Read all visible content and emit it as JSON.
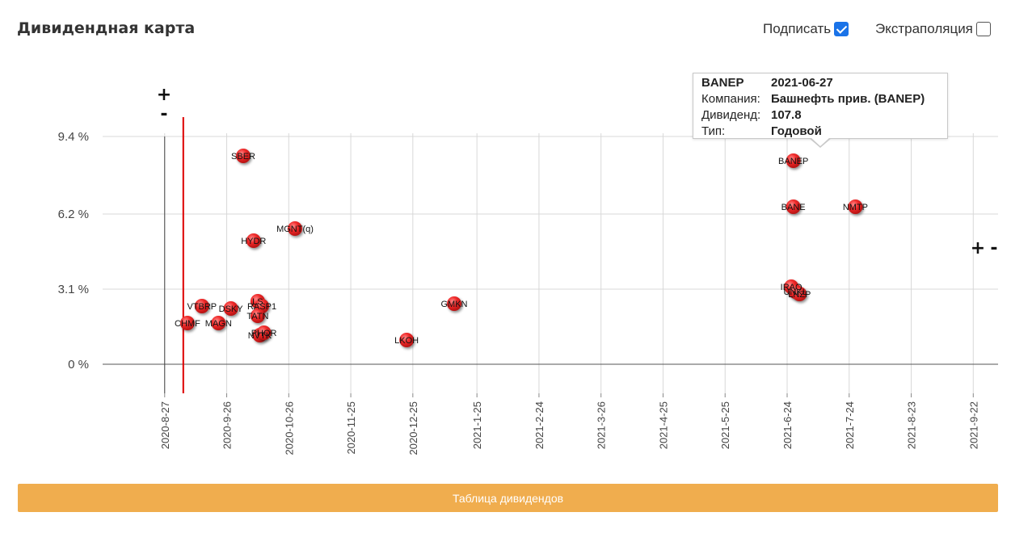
{
  "page": {
    "title": "Дивидендная карта",
    "controls": {
      "sign_label": "Подписать",
      "sign_checked": true,
      "extrapolation_label": "Экстраполяция",
      "extrapolation_checked": false
    },
    "zoom_plus": "+",
    "zoom_minus": "-",
    "table_button": "Таблица дивидендов"
  },
  "tooltip": {
    "ticker": "BANEP",
    "date": "2021-06-27",
    "company_label": "Компания:",
    "company": "Башнефть прив. (BANEP)",
    "dividend_label": "Дивиденд:",
    "dividend": "107.8",
    "type_label": "Тип:",
    "type": "Годовой"
  },
  "colors": {
    "marker": "#ee2222",
    "marker_shadow": "#8a1010",
    "today_line": "#dd0000",
    "button": "#f0ad4e",
    "grid": "#d8d8d8"
  },
  "chart_data": {
    "type": "scatter",
    "x_axis": {
      "type": "date",
      "ticks": [
        "2020-8-27",
        "2020-9-26",
        "2020-10-26",
        "2020-11-25",
        "2020-12-25",
        "2021-1-25",
        "2021-2-24",
        "2021-3-26",
        "2021-4-25",
        "2021-5-25",
        "2021-6-24",
        "2021-7-24",
        "2021-8-23",
        "2021-9-22"
      ],
      "range": [
        "2020-7-28",
        "2021-10-4"
      ]
    },
    "y_axis": {
      "ticks": [
        "0 %",
        "3.1 %",
        "6.2 %",
        "9.4 %"
      ],
      "tick_values": [
        0,
        3.1,
        6.2,
        9.4
      ],
      "range": [
        -1.2,
        10.2
      ]
    },
    "grid": true,
    "reference_line_date": "2020-9-5",
    "points": [
      {
        "label": "SBER",
        "date": "2020-10-4",
        "y": 8.6
      },
      {
        "label": "MGNT(q)",
        "date": "2020-10-29",
        "y": 5.6
      },
      {
        "label": "HYDR",
        "date": "2020-10-9",
        "y": 5.1
      },
      {
        "label": "VTBRP",
        "date": "2020-9-14",
        "y": 2.4
      },
      {
        "label": "DSKY",
        "date": "2020-9-28",
        "y": 2.3
      },
      {
        "label": "LS",
        "date": "2020-10-11",
        "y": 2.6
      },
      {
        "label": "RASP1",
        "date": "2020-10-13",
        "y": 2.4
      },
      {
        "label": "TATN",
        "date": "2020-10-11",
        "y": 2.0
      },
      {
        "label": "CHMF",
        "date": "2020-9-7",
        "y": 1.7
      },
      {
        "label": "MAGN",
        "date": "2020-9-22",
        "y": 1.7
      },
      {
        "label": "NVTK",
        "date": "2020-10-12",
        "y": 1.2
      },
      {
        "label": "PHOR",
        "date": "2020-10-14",
        "y": 1.3
      },
      {
        "label": "LKOH",
        "date": "2020-12-22",
        "y": 1.0
      },
      {
        "label": "GMKN",
        "date": "2021-1-14",
        "y": 2.5
      },
      {
        "label": "BANEP",
        "date": "2021-6-27",
        "y": 8.4
      },
      {
        "label": "BANE",
        "date": "2021-6-27",
        "y": 6.5
      },
      {
        "label": "NMTP",
        "date": "2021-7-27",
        "y": 6.5
      },
      {
        "label": "IRAO",
        "date": "2021-6-26",
        "y": 3.2
      },
      {
        "label": "UNKL",
        "date": "2021-6-28",
        "y": 3.0
      },
      {
        "label": "LNZP",
        "date": "2021-6-30",
        "y": 2.9
      }
    ]
  }
}
